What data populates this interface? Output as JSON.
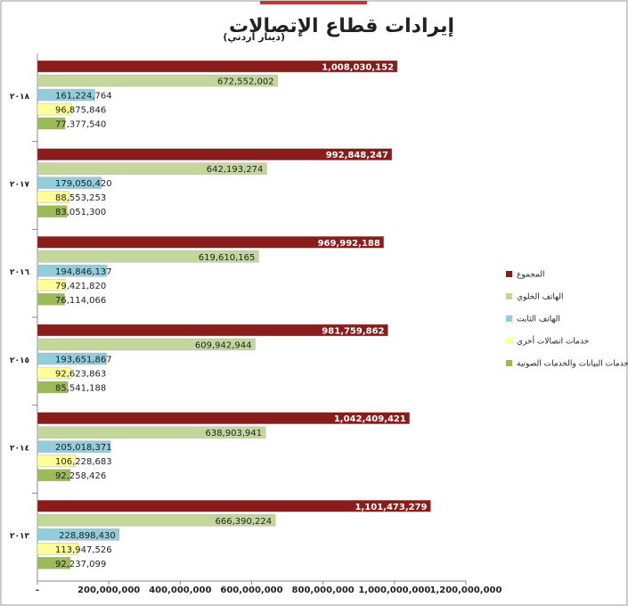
{
  "chart_data": {
    "type": "bar",
    "orientation": "horizontal",
    "title": "إيرادات قطاع الإتصالات",
    "subtitle": "(دينار أردني)",
    "categories": [
      "٢٠١٨",
      "٢٠١٧",
      "٢٠١٦",
      "٢٠١٥",
      "٢٠١٤",
      "٢٠١٣"
    ],
    "series": [
      {
        "name": "المجموع",
        "color": "#8b1c1c",
        "values": [
          1008030152,
          992848247,
          969992188,
          981759862,
          1042409421,
          1101473279
        ],
        "value_labels": [
          "1,008,030,152",
          "992,848,247",
          "969,992,188",
          "981,759,862",
          "1,042,409,421",
          "1,101,473,279"
        ]
      },
      {
        "name": "الهاتف الخلوي",
        "color": "#c4d79b",
        "values": [
          672552002,
          642193274,
          619610165,
          609942944,
          638903941,
          666390224
        ],
        "value_labels": [
          "672,552,002",
          "642,193,274",
          "619,610,165",
          "609,942,944",
          "638,903,941",
          "666,390,224"
        ]
      },
      {
        "name": "الهاتف الثابت",
        "color": "#92cddc",
        "values": [
          161224764,
          179050420,
          194846137,
          193651867,
          205018371,
          228898430
        ],
        "value_labels": [
          "161,224,764",
          "179,050,420",
          "194,846,137",
          "193,651,867",
          "205,018,371",
          "228,898,430"
        ]
      },
      {
        "name": "خدمات اتصالات أخرى",
        "color": "#ffff99",
        "values": [
          96875846,
          88553253,
          79421820,
          92623863,
          106228683,
          113947526
        ],
        "value_labels": [
          "96,875,846",
          "88,553,253",
          "79,421,820",
          "92,623,863",
          "106,228,683",
          "113,947,526"
        ]
      },
      {
        "name": "دي خدمات البيانات والخدمات الصوتية",
        "color": "#9bbb59",
        "values": [
          77377540,
          83051300,
          76114066,
          85541188,
          92258426,
          92237099
        ],
        "value_labels": [
          "77,377,540",
          "83,051,300",
          "76,114,066",
          "85,541,188",
          "92,258,426",
          "92,237,099"
        ]
      }
    ],
    "xlim": [
      0,
      1200000000
    ],
    "xticks": [
      {
        "value": 0,
        "label": "-"
      },
      {
        "value": 200000000,
        "label": "200,000,000"
      },
      {
        "value": 400000000,
        "label": "400,000,000"
      },
      {
        "value": 600000000,
        "label": "600,000,000"
      },
      {
        "value": 800000000,
        "label": "800,000,000"
      },
      {
        "value": 1000000000,
        "label": "1,000,000,000"
      },
      {
        "value": 1200000000,
        "label": "1,200,000,000"
      }
    ],
    "legend": "right"
  }
}
